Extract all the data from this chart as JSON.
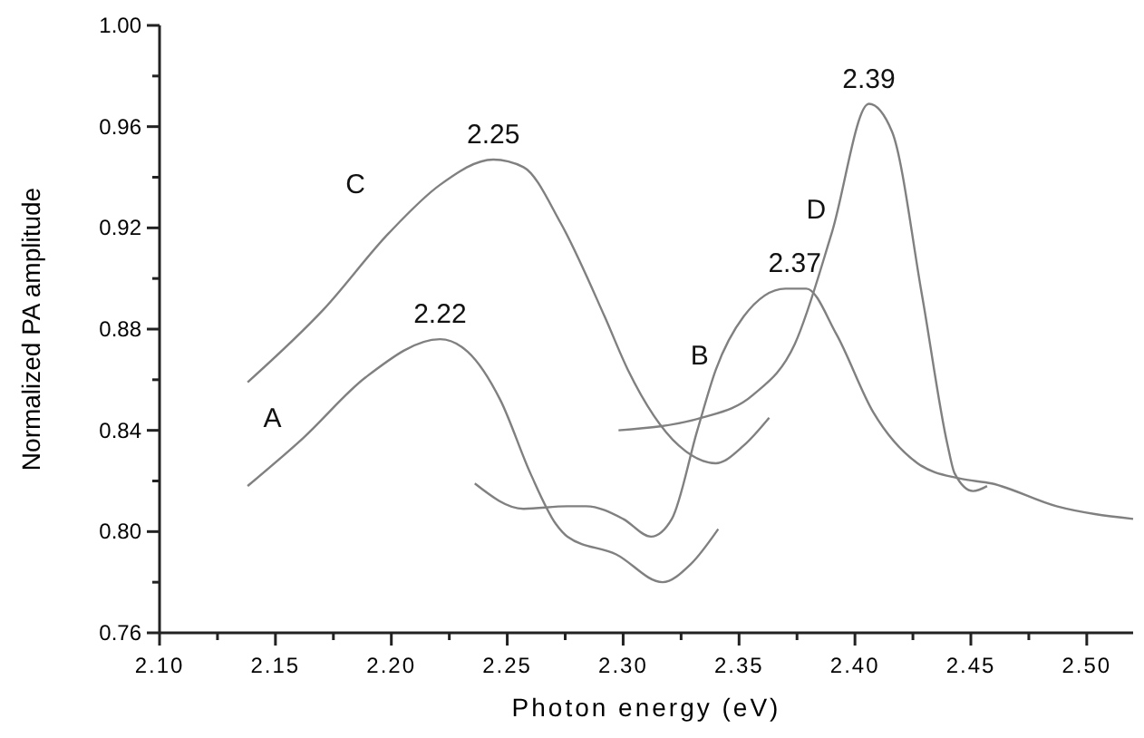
{
  "chart_data": {
    "type": "line",
    "xlabel": "Photon energy (eV)",
    "ylabel": "Normalized PA amplitude",
    "xlim": [
      2.1,
      2.52
    ],
    "ylim": [
      0.76,
      1.0
    ],
    "xticks": [
      {
        "value": 2.1,
        "label": "2.10"
      },
      {
        "value": 2.125,
        "label": null
      },
      {
        "value": 2.15,
        "label": "2.15"
      },
      {
        "value": 2.175,
        "label": null
      },
      {
        "value": 2.2,
        "label": "2.20"
      },
      {
        "value": 2.225,
        "label": null
      },
      {
        "value": 2.25,
        "label": "2.25"
      },
      {
        "value": 2.275,
        "label": null
      },
      {
        "value": 2.3,
        "label": "2.30"
      },
      {
        "value": 2.325,
        "label": null
      },
      {
        "value": 2.35,
        "label": "2.35"
      },
      {
        "value": 2.375,
        "label": null
      },
      {
        "value": 2.4,
        "label": "2.40"
      },
      {
        "value": 2.425,
        "label": null
      },
      {
        "value": 2.45,
        "label": "2.45"
      },
      {
        "value": 2.475,
        "label": null
      },
      {
        "value": 2.5,
        "label": "2.50"
      }
    ],
    "yticks": [
      {
        "value": 0.76,
        "label": "0.76"
      },
      {
        "value": 0.78,
        "label": null
      },
      {
        "value": 0.8,
        "label": "0.80"
      },
      {
        "value": 0.82,
        "label": null
      },
      {
        "value": 0.84,
        "label": "0.84"
      },
      {
        "value": 0.86,
        "label": null
      },
      {
        "value": 0.88,
        "label": "0.88"
      },
      {
        "value": 0.9,
        "label": null
      },
      {
        "value": 0.92,
        "label": "0.92"
      },
      {
        "value": 0.94,
        "label": null
      },
      {
        "value": 0.96,
        "label": "0.96"
      },
      {
        "value": 0.98,
        "label": null
      },
      {
        "value": 1.0,
        "label": "1.00"
      }
    ],
    "marker": "none",
    "line_style": "solid",
    "series": [
      {
        "name": "A",
        "color": "#808080",
        "x": [
          2.138,
          2.162,
          2.189,
          2.221,
          2.233,
          2.247,
          2.26,
          2.271,
          2.276,
          2.297,
          2.317,
          2.329,
          2.341
        ],
        "values": [
          0.818,
          0.837,
          0.861,
          0.876,
          0.871,
          0.852,
          0.823,
          0.803,
          0.798,
          0.791,
          0.78,
          0.787,
          0.801
        ]
      },
      {
        "name": "B",
        "color": "#808080",
        "x": [
          2.236,
          2.257,
          2.276,
          2.284,
          2.3,
          2.312,
          2.321,
          2.332,
          2.34,
          2.352,
          2.37,
          2.379,
          2.392,
          2.408,
          2.427,
          2.445,
          2.459,
          2.487,
          2.52
        ],
        "values": [
          0.819,
          0.809,
          0.81,
          0.81,
          0.805,
          0.798,
          0.805,
          0.84,
          0.864,
          0.885,
          0.896,
          0.896,
          0.878,
          0.847,
          0.827,
          0.821,
          0.819,
          0.81,
          0.805
        ]
      },
      {
        "name": "C",
        "color": "#808080",
        "x": [
          2.138,
          2.171,
          2.199,
          2.221,
          2.244,
          2.257,
          2.273,
          2.292,
          2.302,
          2.324,
          2.34,
          2.352,
          2.363
        ],
        "values": [
          0.859,
          0.888,
          0.918,
          0.937,
          0.947,
          0.944,
          0.922,
          0.885,
          0.864,
          0.834,
          0.827,
          0.834,
          0.845
        ]
      },
      {
        "name": "D",
        "color": "#808080",
        "x": [
          2.298,
          2.334,
          2.356,
          2.374,
          2.39,
          2.406,
          2.416,
          2.429,
          2.44,
          2.443,
          2.451,
          2.457
        ],
        "values": [
          0.84,
          0.845,
          0.854,
          0.874,
          0.918,
          0.969,
          0.958,
          0.893,
          0.834,
          0.823,
          0.816,
          0.818
        ]
      }
    ],
    "annotations": [
      {
        "text": "2.22",
        "x": 2.221,
        "y": 0.876
      },
      {
        "text": "2.25",
        "x": 2.244,
        "y": 0.947
      },
      {
        "text": "2.37",
        "x": 2.374,
        "y": 0.896
      },
      {
        "text": "2.39",
        "x": 2.406,
        "y": 0.969
      }
    ]
  }
}
